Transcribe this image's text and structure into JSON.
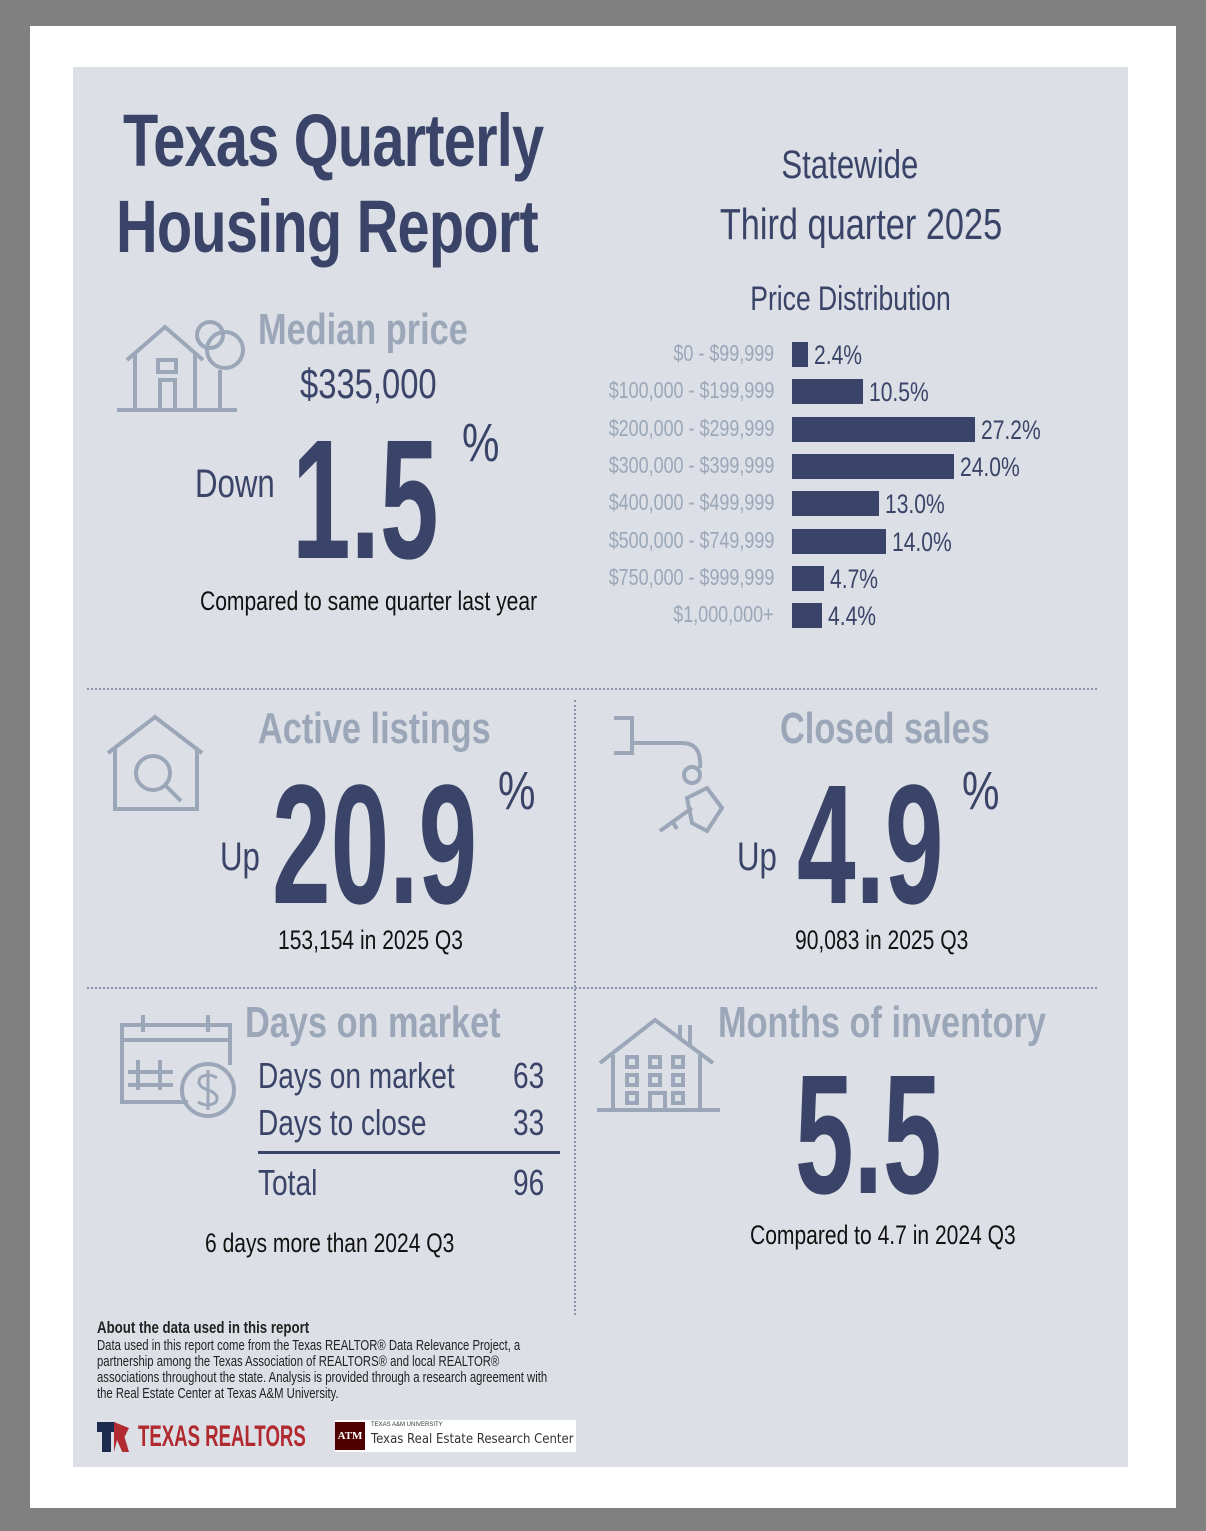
{
  "title": {
    "line1": "Texas Quarterly",
    "line2": "Housing Report"
  },
  "region": "Statewide",
  "period": "Third quarter 2025",
  "median": {
    "heading": "Median price",
    "price": "$335,000",
    "direction": "Down",
    "value": "1.5",
    "unit": "%",
    "note": "Compared to same quarter last year"
  },
  "chart_data": {
    "type": "bar",
    "title": "Price Distribution",
    "categories": [
      "$0 - $99,999",
      "$100,000 - $199,999",
      "$200,000 - $299,999",
      "$300,000 - $399,999",
      "$400,000 - $499,999",
      "$500,000 - $749,999",
      "$750,000 - $999,999",
      "$1,000,000+"
    ],
    "values": [
      2.4,
      10.5,
      27.2,
      24.0,
      13.0,
      14.0,
      4.7,
      4.4
    ],
    "labels": [
      "2.4%",
      "10.5%",
      "27.2%",
      "24.0%",
      "13.0%",
      "14.0%",
      "4.7%",
      "4.4%"
    ],
    "orientation": "horizontal",
    "color": "#3a4468"
  },
  "active": {
    "heading": "Active listings",
    "direction": "Up",
    "value": "20.9",
    "unit": "%",
    "note": "153,154 in 2025 Q3"
  },
  "closed": {
    "heading": "Closed sales",
    "direction": "Up",
    "value": "4.9",
    "unit": "%",
    "note": "90,083 in 2025 Q3"
  },
  "dom": {
    "heading": "Days on market",
    "rows": [
      {
        "label": "Days on market",
        "value": "63"
      },
      {
        "label": "Days to close",
        "value": "33"
      },
      {
        "label": "Total",
        "value": "96"
      }
    ],
    "note": "6 days more than 2024 Q3"
  },
  "moi": {
    "heading": "Months of inventory",
    "value": "5.5",
    "note": "Compared to 4.7 in 2024 Q3"
  },
  "about": {
    "heading": "About the data used in this report",
    "body": "Data used in this report come from the Texas REALTOR® Data Relevance Project, a partnership among the Texas Association of REALTORS® and local REALTOR® associations throughout the state. Analysis is provided through a research agreement with the Real Estate Center at Texas A&M University."
  },
  "logos": {
    "tr": "TEXAS REALTORS",
    "tamu_small": "TEXAS A&M UNIVERSITY",
    "tamu": "Texas Real Estate Research Center",
    "tamu_mark": "ATM"
  },
  "colors": {
    "navy": "#3a4468",
    "light": "#9ba7b9",
    "panel": "#dcdfe5"
  }
}
